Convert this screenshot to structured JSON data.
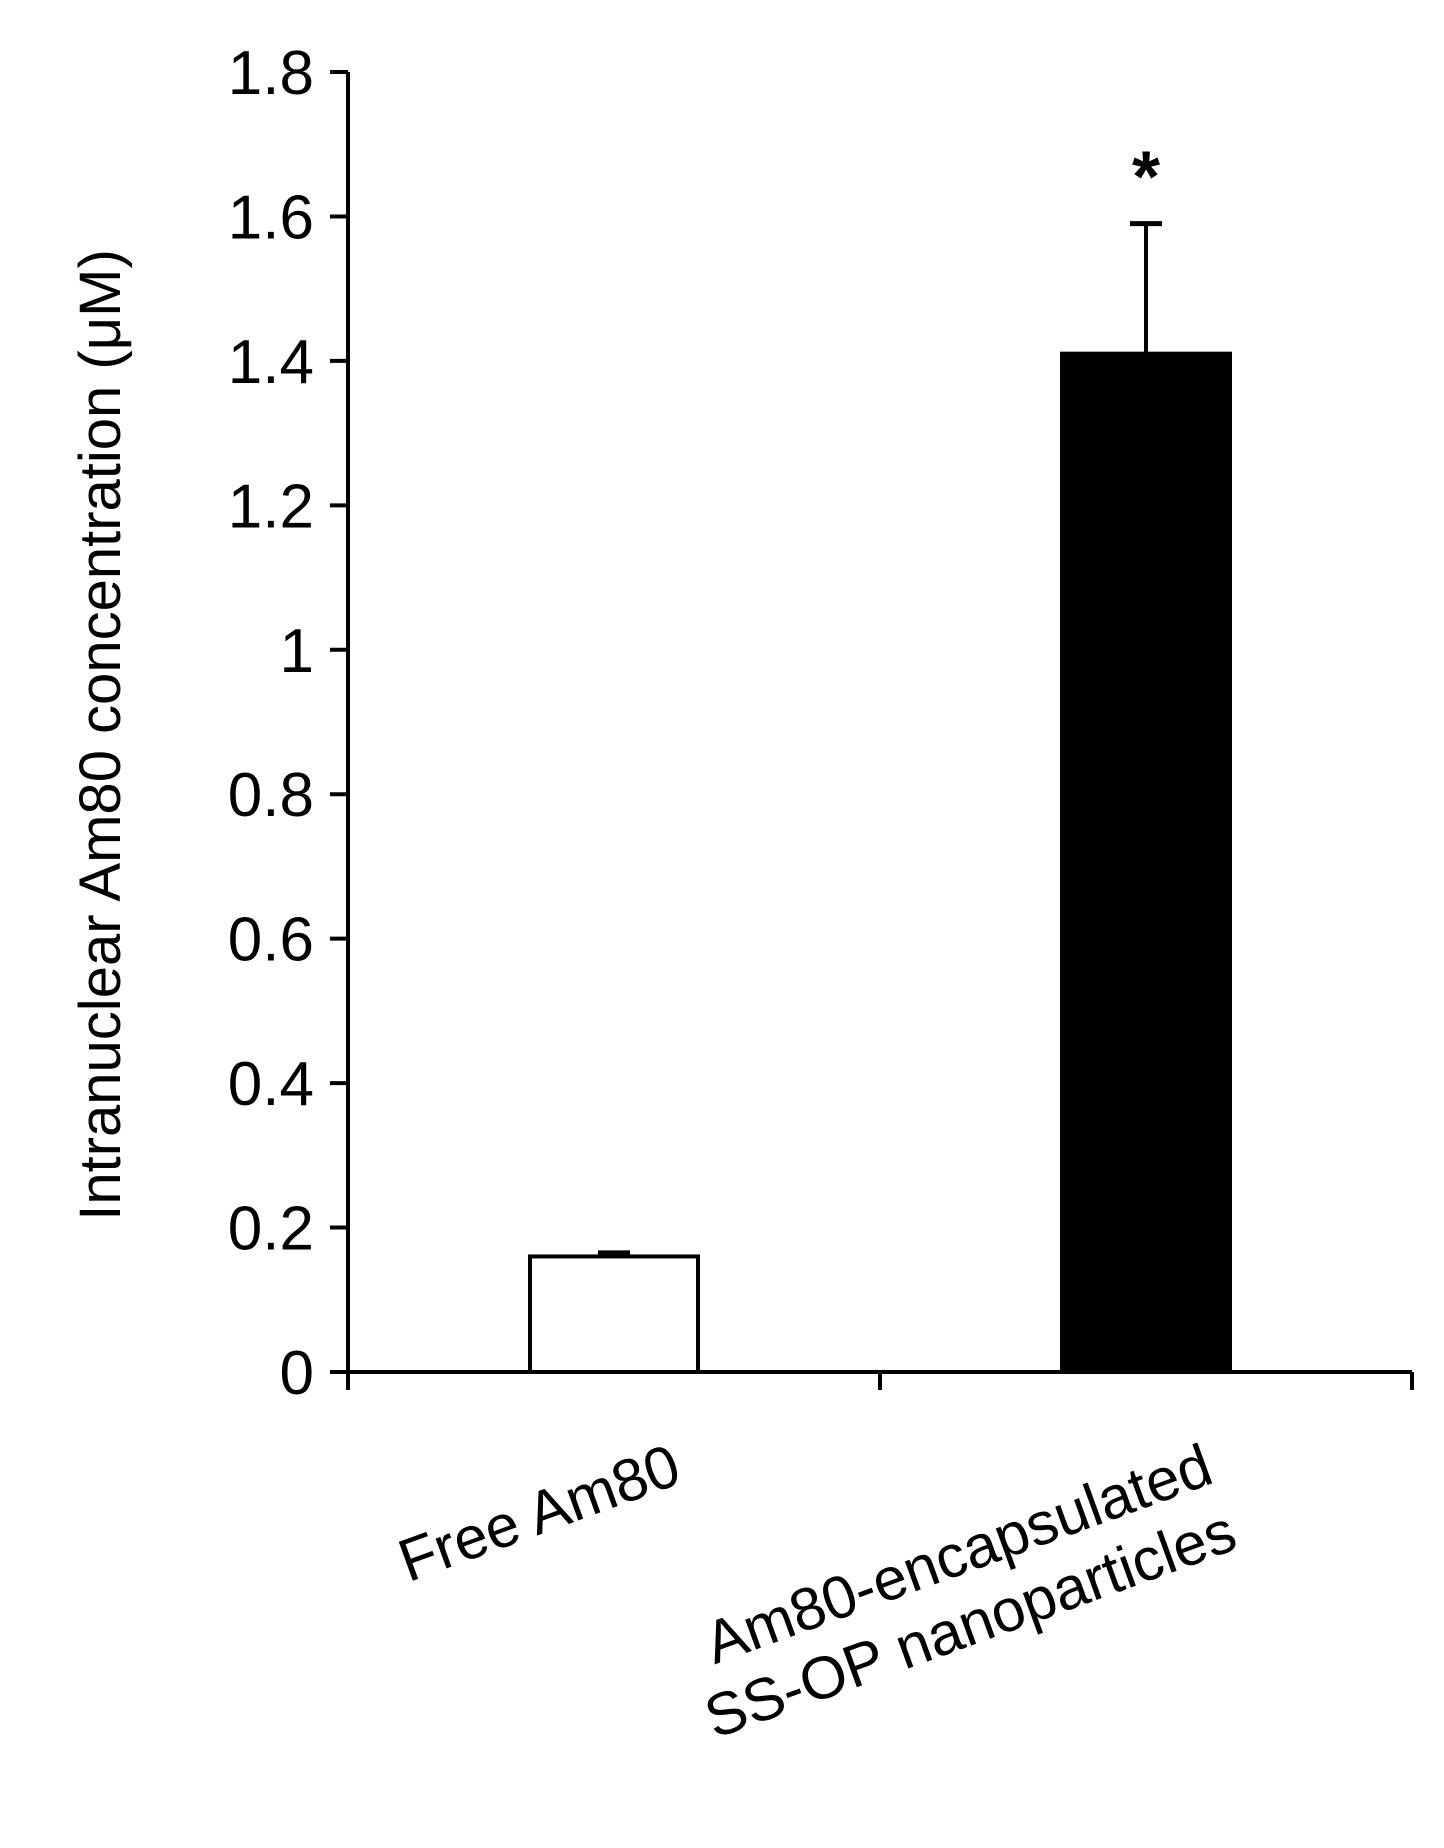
{
  "chart_data": {
    "type": "bar",
    "title": "",
    "xlabel": "",
    "ylabel": "Intranuclear Am80 concentration (μM)",
    "ylim": [
      0,
      1.8
    ],
    "yticks": [
      {
        "value": 0,
        "label": "0"
      },
      {
        "value": 0.2,
        "label": "0.2"
      },
      {
        "value": 0.4,
        "label": "0.4"
      },
      {
        "value": 0.6,
        "label": "0.6"
      },
      {
        "value": 0.8,
        "label": "0.8"
      },
      {
        "value": 1.0,
        "label": "1"
      },
      {
        "value": 1.2,
        "label": "1.2"
      },
      {
        "value": 1.4,
        "label": "1.4"
      },
      {
        "value": 1.6,
        "label": "1.6"
      },
      {
        "value": 1.8,
        "label": "1.8"
      }
    ],
    "categories": [
      [
        "Free Am80"
      ],
      [
        "Am80-encapsulated",
        "SS-OP nanoparticles"
      ]
    ],
    "values": [
      0.16,
      1.41
    ],
    "errors": [
      0.005,
      0.18
    ],
    "bar_fills": [
      "#ffffff",
      "#000000"
    ],
    "bar_outline": "#000000",
    "annotations": [
      "",
      "*"
    ],
    "grid": false,
    "legend": "none"
  }
}
